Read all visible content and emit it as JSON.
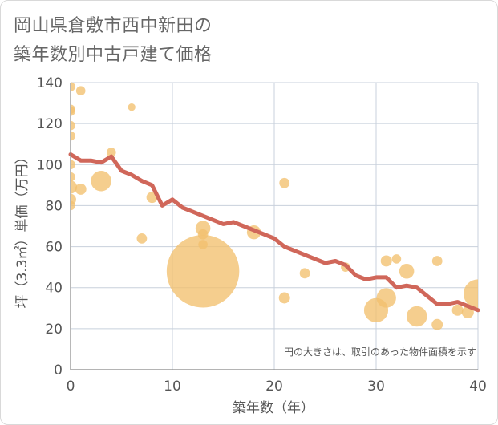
{
  "title_lines": [
    "岡山県倉敷市西中新田の",
    "築年数別中古戸建て価格"
  ],
  "note": "円の大きさは、取引のあった物件面積を示す",
  "colors": {
    "line": "#d0675a",
    "bubble": "#f2c06e",
    "grid": "#c8d0dc",
    "text": "#555555"
  },
  "chart_data": {
    "type": "scatter",
    "xlabel": "築年数（年）",
    "ylabel": "坪（3.3㎡）単価（万円）",
    "xlim": [
      0,
      40
    ],
    "ylim": [
      0,
      140
    ],
    "xticks": [
      0,
      10,
      20,
      30,
      40
    ],
    "yticks": [
      0,
      20,
      40,
      60,
      80,
      100,
      120,
      140
    ],
    "grid": true,
    "bubbles": [
      {
        "x": 0,
        "y": 138,
        "s": 1
      },
      {
        "x": 1,
        "y": 136,
        "s": 1
      },
      {
        "x": 0,
        "y": 127,
        "s": 1
      },
      {
        "x": 0,
        "y": 126,
        "s": 1
      },
      {
        "x": 0,
        "y": 119,
        "s": 1
      },
      {
        "x": 0,
        "y": 114,
        "s": 1
      },
      {
        "x": 0,
        "y": 100,
        "s": 1
      },
      {
        "x": 0,
        "y": 94,
        "s": 1
      },
      {
        "x": 0,
        "y": 89,
        "s": 1.4
      },
      {
        "x": 1,
        "y": 88,
        "s": 1.2
      },
      {
        "x": 0,
        "y": 83,
        "s": 1.2
      },
      {
        "x": 0,
        "y": 80,
        "s": 1
      },
      {
        "x": 3,
        "y": 92,
        "s": 2.2
      },
      {
        "x": 4,
        "y": 106,
        "s": 1
      },
      {
        "x": 6,
        "y": 128,
        "s": 0.8
      },
      {
        "x": 7,
        "y": 64,
        "s": 1.1
      },
      {
        "x": 8,
        "y": 84,
        "s": 1.2
      },
      {
        "x": 13,
        "y": 48,
        "s": 7.8
      },
      {
        "x": 13,
        "y": 69,
        "s": 1.6
      },
      {
        "x": 13,
        "y": 66,
        "s": 1.1
      },
      {
        "x": 13,
        "y": 61,
        "s": 1
      },
      {
        "x": 18,
        "y": 67,
        "s": 1.5
      },
      {
        "x": 21,
        "y": 91,
        "s": 1.1
      },
      {
        "x": 21,
        "y": 35,
        "s": 1.2
      },
      {
        "x": 23,
        "y": 47,
        "s": 1.1
      },
      {
        "x": 27,
        "y": 50,
        "s": 1
      },
      {
        "x": 30,
        "y": 29,
        "s": 2.6
      },
      {
        "x": 31,
        "y": 35,
        "s": 2.1
      },
      {
        "x": 31,
        "y": 53,
        "s": 1.2
      },
      {
        "x": 32,
        "y": 54,
        "s": 1
      },
      {
        "x": 33,
        "y": 48,
        "s": 1.6
      },
      {
        "x": 34,
        "y": 26,
        "s": 2.2
      },
      {
        "x": 36,
        "y": 53,
        "s": 1.1
      },
      {
        "x": 36,
        "y": 22,
        "s": 1.2
      },
      {
        "x": 38,
        "y": 29,
        "s": 1.2
      },
      {
        "x": 39,
        "y": 28,
        "s": 1.3
      },
      {
        "x": 40,
        "y": 37,
        "s": 3.1
      }
    ],
    "line": {
      "x": [
        0,
        1,
        2,
        3,
        4,
        5,
        6,
        7,
        8,
        9,
        10,
        11,
        12,
        13,
        14,
        15,
        16,
        17,
        18,
        19,
        20,
        21,
        22,
        23,
        24,
        25,
        26,
        27,
        28,
        29,
        30,
        31,
        32,
        33,
        34,
        35,
        36,
        37,
        38,
        39,
        40
      ],
      "y": [
        105,
        102,
        102,
        101,
        104,
        97,
        95,
        92,
        90,
        80,
        83,
        79,
        77,
        75,
        73,
        71,
        72,
        70,
        68,
        66,
        64,
        60,
        58,
        56,
        54,
        52,
        53,
        51,
        46,
        44,
        45,
        45,
        40,
        41,
        40,
        36,
        32,
        32,
        33,
        31,
        29
      ]
    }
  }
}
